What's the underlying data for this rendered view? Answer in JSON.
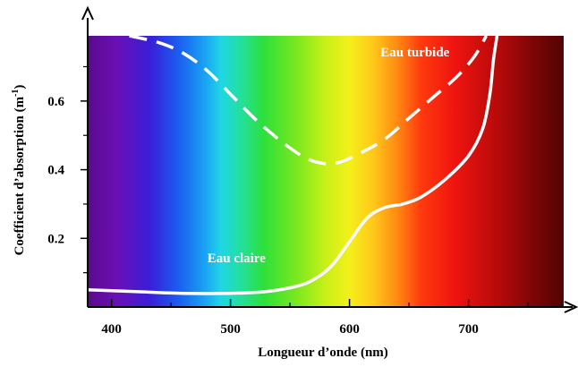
{
  "chart_data": {
    "type": "line",
    "title": "",
    "xlabel": "Longueur d’onde (nm)",
    "ylabel_main": "Coefficient d’absorption (m",
    "ylabel_sup": "-1",
    "ylabel_close": ")",
    "xlim": [
      380,
      780
    ],
    "ylim": [
      0.0,
      0.79
    ],
    "x_ticks": [
      400,
      500,
      600,
      700
    ],
    "x_tick_labels": [
      "400",
      "500",
      "600",
      "700"
    ],
    "x_minor_ticks": [
      450,
      550,
      650,
      750
    ],
    "y_ticks": [
      0.2,
      0.4,
      0.6
    ],
    "y_tick_labels": [
      "0.2",
      "0.4",
      "0.6"
    ],
    "y_minor_ticks": [
      0.1,
      0.3,
      0.5,
      0.7
    ],
    "background": "visible spectrum gradient (violet to dark red)",
    "grid": false,
    "series": [
      {
        "name": "Eau turbide",
        "style": "dashed",
        "color": "#ffffff",
        "x": [
          415,
          440,
          460,
          480,
          500,
          520,
          540,
          560,
          575,
          590,
          610,
          630,
          650,
          670,
          690,
          705,
          715
        ],
        "y": [
          0.79,
          0.77,
          0.74,
          0.69,
          0.62,
          0.55,
          0.49,
          0.44,
          0.42,
          0.42,
          0.45,
          0.49,
          0.55,
          0.61,
          0.67,
          0.73,
          0.79
        ]
      },
      {
        "name": "Eau claire",
        "style": "solid",
        "color": "#ffffff",
        "x": [
          380,
          420,
          460,
          500,
          530,
          555,
          570,
          585,
          600,
          615,
          630,
          645,
          660,
          680,
          700,
          712,
          718,
          721,
          724
        ],
        "y": [
          0.05,
          0.045,
          0.04,
          0.04,
          0.045,
          0.06,
          0.08,
          0.12,
          0.19,
          0.26,
          0.29,
          0.3,
          0.32,
          0.37,
          0.44,
          0.52,
          0.62,
          0.72,
          0.79
        ]
      }
    ],
    "annotations": [
      {
        "text": "Eau turbide",
        "x": 655,
        "y": 0.73,
        "anchor": "middle"
      },
      {
        "text": "Eau claire",
        "x": 505,
        "y": 0.13,
        "anchor": "middle"
      }
    ]
  }
}
